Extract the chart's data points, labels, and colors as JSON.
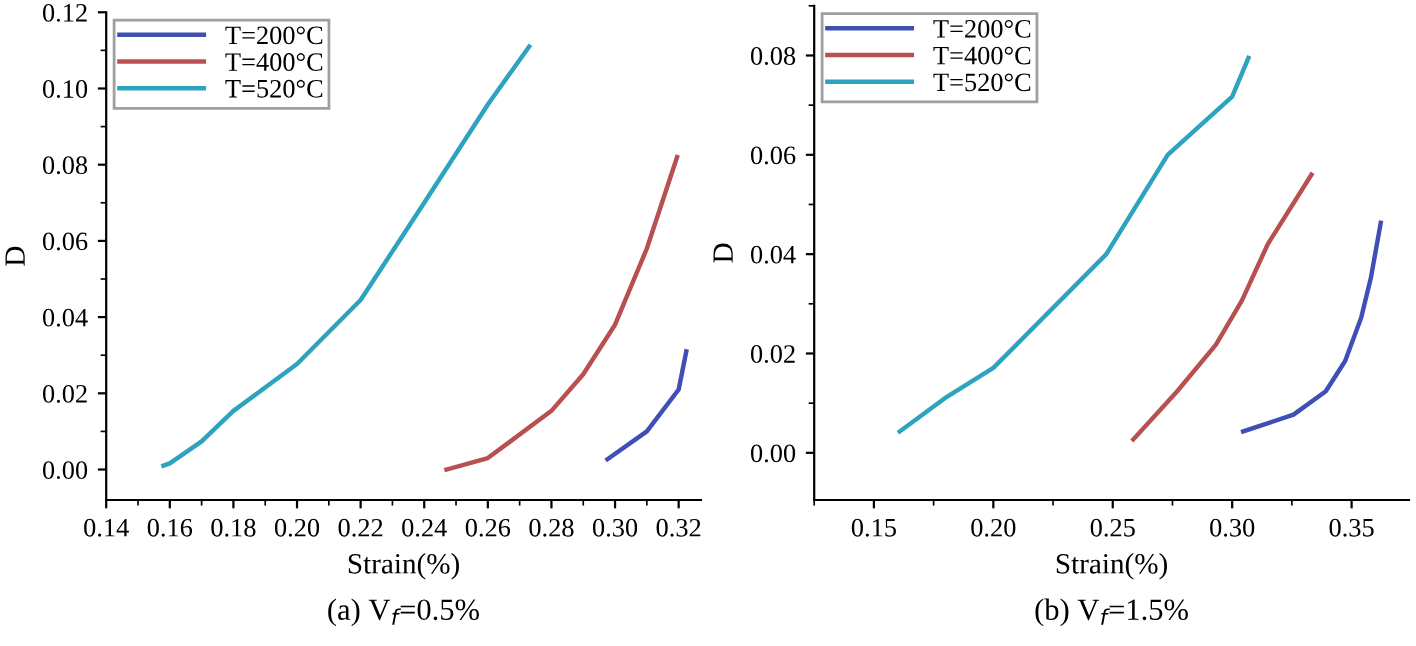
{
  "chart_data": [
    {
      "type": "line",
      "xlabel": "Strain(%)",
      "ylabel": "D",
      "annotations": [
        "(a) V$_{f}$=0.5%"
      ],
      "legend": "top left",
      "xlim": [
        0.14,
        0.327
      ],
      "ylim": [
        -0.008,
        0.12
      ],
      "xticks": [
        {
          "value": 0.14,
          "label": "0.14"
        },
        {
          "value": 0.16,
          "label": "0.16"
        },
        {
          "value": 0.18,
          "label": "0.18"
        },
        {
          "value": 0.2,
          "label": "0.20"
        },
        {
          "value": 0.22,
          "label": "0.22"
        },
        {
          "value": 0.24,
          "label": "0.24"
        },
        {
          "value": 0.26,
          "label": "0.26"
        },
        {
          "value": 0.28,
          "label": "0.28"
        },
        {
          "value": 0.3,
          "label": "0.30"
        },
        {
          "value": 0.32,
          "label": "0.32"
        }
      ],
      "yticks": [
        {
          "value": 0,
          "label": "0.00"
        },
        {
          "value": 0.02,
          "label": "0.02"
        },
        {
          "value": 0.04,
          "label": "0.04"
        },
        {
          "value": 0.06,
          "label": "0.06"
        },
        {
          "value": 0.08,
          "label": "0.08"
        },
        {
          "value": 0.1,
          "label": "0.10"
        },
        {
          "value": 0.12,
          "label": "0.12"
        }
      ],
      "series": [
        {
          "name": "T=200°C",
          "color": "#3f4fb5",
          "x": [
            0.2976,
            0.31,
            0.32,
            0.3224
          ],
          "values": [
            0.0027,
            0.01,
            0.021,
            0.031
          ]
        },
        {
          "name": "T=400°C",
          "color": "#b85050",
          "x": [
            0.247,
            0.26,
            0.28,
            0.29,
            0.3,
            0.31,
            0.3195
          ],
          "values": [
            0.0,
            0.003,
            0.0154,
            0.025,
            0.038,
            0.058,
            0.082
          ]
        },
        {
          "name": "T=520°C",
          "color": "#2ea3bf",
          "x": [
            0.158,
            0.16,
            0.17,
            0.18,
            0.2,
            0.22,
            0.24,
            0.26,
            0.273
          ],
          "values": [
            0.001,
            0.0016,
            0.0074,
            0.0154,
            0.0277,
            0.0445,
            0.07,
            0.0958,
            0.111
          ]
        }
      ]
    },
    {
      "type": "line",
      "xlabel": "Strain(%)",
      "ylabel": "D",
      "annotations": [
        "(b) V$_{f}$=1.5%"
      ],
      "legend": "top left",
      "xlim": [
        0.125,
        0.374
      ],
      "ylim": [
        -0.0095,
        0.09
      ],
      "xticks": [
        {
          "value": 0.15,
          "label": "0.15"
        },
        {
          "value": 0.2,
          "label": "0.20"
        },
        {
          "value": 0.25,
          "label": "0.25"
        },
        {
          "value": 0.3,
          "label": "0.30"
        },
        {
          "value": 0.35,
          "label": "0.35"
        }
      ],
      "yticks": [
        {
          "value": 0,
          "label": "0.00"
        },
        {
          "value": 0.02,
          "label": "0.02"
        },
        {
          "value": 0.04,
          "label": "0.04"
        },
        {
          "value": 0.06,
          "label": "0.06"
        },
        {
          "value": 0.08,
          "label": "0.08"
        }
      ],
      "series": [
        {
          "name": "T=200°C",
          "color": "#3f4fb5",
          "x": [
            0.3046,
            0.3257,
            0.3392,
            0.3473,
            0.354,
            0.3581,
            0.3622
          ],
          "values": [
            0.0043,
            0.0077,
            0.0124,
            0.0185,
            0.0272,
            0.0353,
            0.0463
          ]
        },
        {
          "name": "T=400°C",
          "color": "#b85050",
          "x": [
            0.2586,
            0.277,
            0.2932,
            0.304,
            0.3149,
            0.3332
          ],
          "values": [
            0.0027,
            0.0124,
            0.0218,
            0.0306,
            0.042,
            0.056
          ]
        },
        {
          "name": "T=520°C",
          "color": "#2ea3bf",
          "x": [
            0.1608,
            0.1797,
            0.2,
            0.2473,
            0.273,
            0.3,
            0.3068
          ],
          "values": [
            0.0043,
            0.011,
            0.0171,
            0.04,
            0.06,
            0.0717,
            0.0795
          ]
        }
      ]
    }
  ]
}
